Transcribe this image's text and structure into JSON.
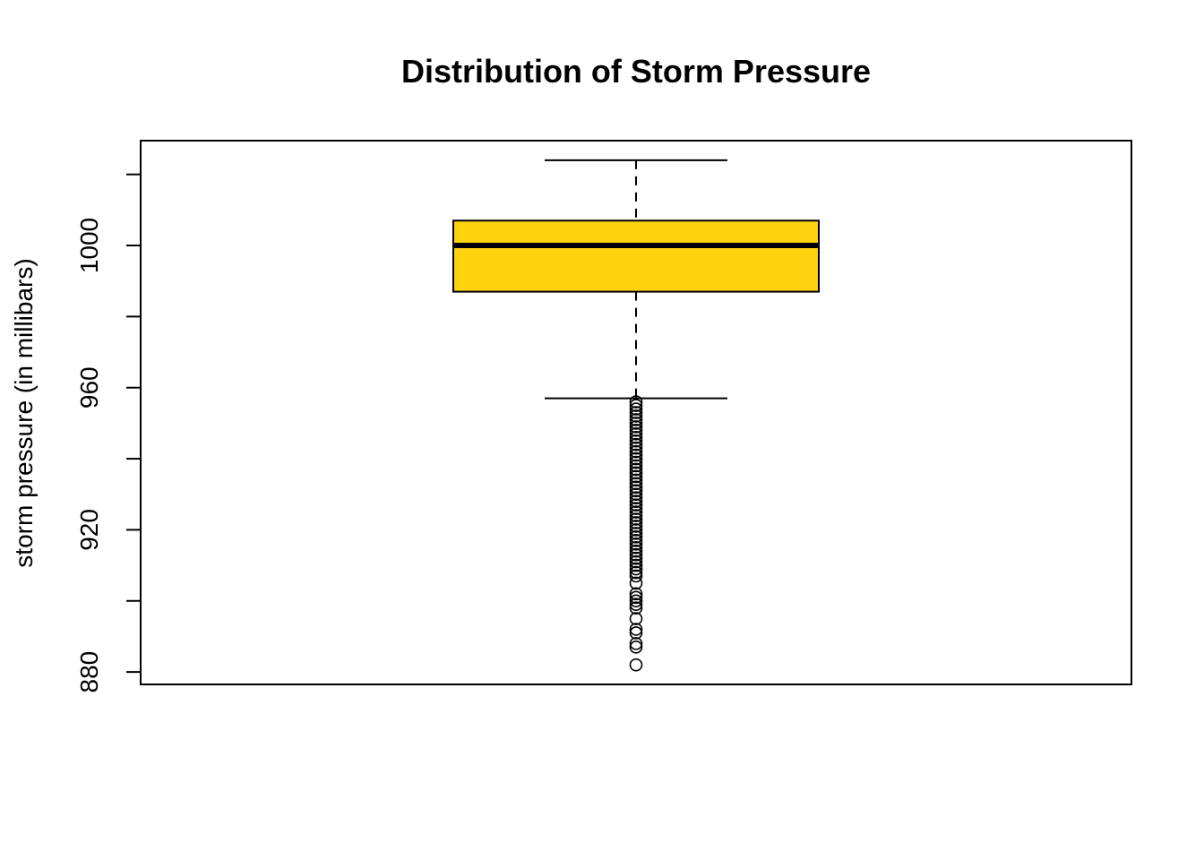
{
  "chart_data": {
    "type": "boxplot",
    "title": "Distribution of Storm Pressure",
    "xlabel": "",
    "ylabel": "storm pressure (in millibars)",
    "ylim": [
      876.5,
      1029.5
    ],
    "yticks": [
      880,
      900,
      920,
      940,
      960,
      980,
      1000,
      1020
    ],
    "ytick_labels_shown": [
      "880",
      "920",
      "960",
      "1000"
    ],
    "box_color": "#FFD20F",
    "grid": false,
    "stats": {
      "whisker_low": 957,
      "q1": 987,
      "median": 1000,
      "q3": 1007,
      "whisker_high": 1024
    },
    "outliers": [
      956,
      955,
      954,
      953,
      952,
      951,
      950,
      949,
      948,
      947,
      946,
      945,
      944,
      943,
      942,
      941,
      940,
      939,
      938,
      937,
      936,
      935,
      934,
      933,
      932,
      931,
      930,
      929,
      928,
      927,
      926,
      925,
      924,
      923,
      922,
      921,
      920,
      919,
      918,
      917,
      916,
      915,
      914,
      913,
      912,
      911,
      910,
      909,
      908,
      907,
      905,
      902,
      901,
      900,
      899,
      898,
      895,
      892,
      891,
      888,
      887,
      882
    ]
  }
}
